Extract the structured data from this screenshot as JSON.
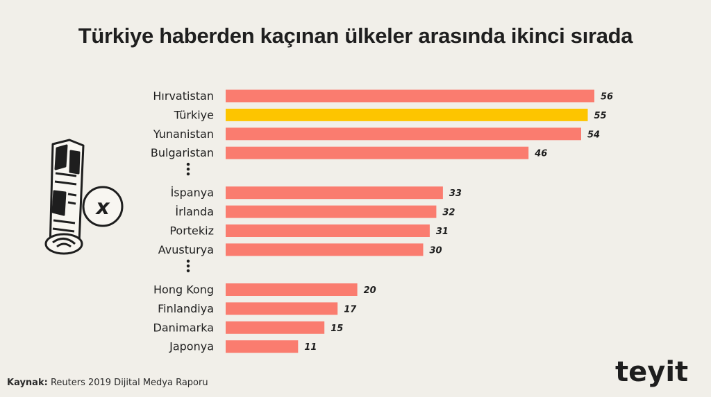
{
  "title": "Türkiye haberden kaçınan ülkeler arasında ikinci sırada",
  "source": {
    "prefix": "Kaynak:",
    "text": "Reuters 2019 Dijital Medya Raporu"
  },
  "logo_text": "teyit",
  "colors": {
    "bar": "#fa7c6f",
    "highlight": "#fdc500",
    "text": "#1e1e1e",
    "background": "#f1efe9"
  },
  "icons": [
    "rolled-newspaper-icon",
    "x-circle-icon",
    "vertical-ellipsis-icon"
  ],
  "chart_data": {
    "type": "bar",
    "orientation": "horizontal",
    "title": "Türkiye haberden kaçınan ülkeler arasında ikinci sırada",
    "xlabel": "",
    "ylabel": "",
    "grid": false,
    "groups": [
      {
        "categories": [
          "Hırvatistan",
          "Türkiye",
          "Yunanistan",
          "Bulgaristan"
        ],
        "values": [
          56,
          55,
          54,
          46
        ]
      },
      {
        "categories": [
          "İspanya",
          "İrlanda",
          "Portekiz",
          "Avusturya"
        ],
        "values": [
          33,
          32,
          31,
          30
        ]
      },
      {
        "categories": [
          "Hong Kong",
          "Finlandiya",
          "Danimarka",
          "Japonya"
        ],
        "values": [
          20,
          17,
          15,
          11
        ]
      }
    ],
    "highlight": "Türkiye",
    "xlim": [
      0,
      56
    ]
  }
}
